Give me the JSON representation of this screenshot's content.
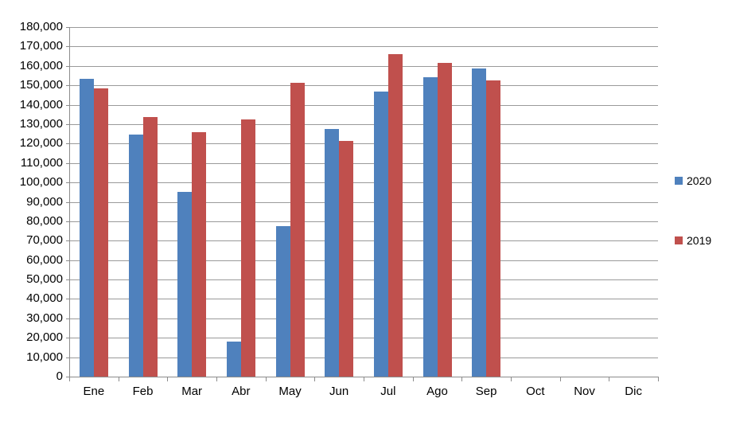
{
  "chart_data": {
    "type": "bar",
    "title": "",
    "categories": [
      "Ene",
      "Feb",
      "Mar",
      "Abr",
      "May",
      "Jun",
      "Jul",
      "Ago",
      "Sep",
      "Oct",
      "Nov",
      "Dic"
    ],
    "series": [
      {
        "name": "2020",
        "color": "#4F81BD",
        "values": [
          153500,
          124500,
          95000,
          18000,
          77500,
          127500,
          147000,
          154000,
          158500,
          null,
          null,
          null
        ]
      },
      {
        "name": "2019",
        "color": "#C0504D",
        "values": [
          148500,
          133500,
          126000,
          132500,
          151500,
          121500,
          166000,
          161500,
          152500,
          null,
          null,
          null
        ]
      }
    ],
    "xlabel": "",
    "ylabel": "",
    "ylim": [
      0,
      180000
    ],
    "ytick_step": 10000,
    "ytick_labels": [
      "0",
      "10,000",
      "20,000",
      "30,000",
      "40,000",
      "50,000",
      "60,000",
      "70,000",
      "80,000",
      "90,000",
      "100,000",
      "110,000",
      "120,000",
      "130,000",
      "140,000",
      "150,000",
      "160,000",
      "170,000",
      "180,000"
    ],
    "grid": true,
    "legend_position": "right",
    "axis_color": "#8c8c8c",
    "gridline_color": "#9a9a9a",
    "background_color": "#ffffff"
  }
}
